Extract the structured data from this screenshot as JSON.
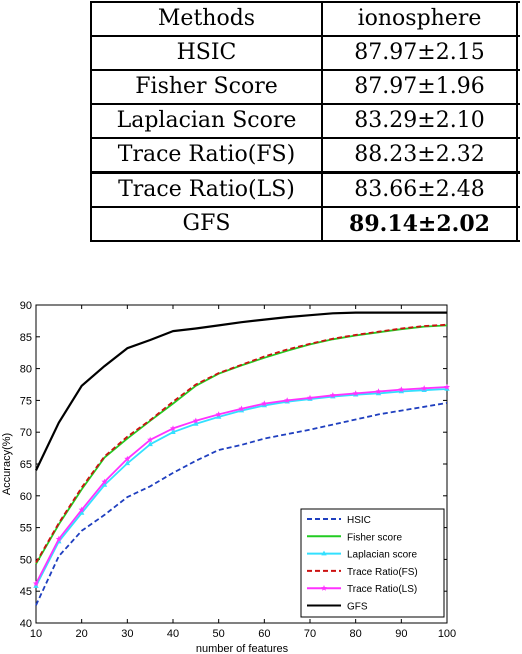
{
  "table": {
    "header": [
      "Methods",
      "ionosphere"
    ],
    "rows": [
      {
        "method": "HSIC",
        "value": "87.97±2.15",
        "best": false
      },
      {
        "method": "Fisher Score",
        "value": "87.97±1.96",
        "best": false
      },
      {
        "method": "Laplacian Score",
        "value": "83.29±2.10",
        "best": false
      },
      {
        "method": "Trace Ratio(FS)",
        "value": "88.23±2.32",
        "best": false
      },
      {
        "method": "Trace Ratio(LS)",
        "value": "83.66±2.48",
        "best": false
      },
      {
        "method": "GFS",
        "value": "89.14±2.02",
        "best": true
      }
    ]
  },
  "chart_data": {
    "type": "line",
    "title": "",
    "xlabel": "number of features",
    "ylabel": "Accuracy(%)",
    "xlim": [
      10,
      100
    ],
    "ylim": [
      40,
      90
    ],
    "xticks": [
      10,
      20,
      30,
      40,
      50,
      60,
      70,
      80,
      90,
      100
    ],
    "yticks": [
      40,
      45,
      50,
      55,
      60,
      65,
      70,
      75,
      80,
      85,
      90
    ],
    "grid": false,
    "legend_position": "bottom-right",
    "x": [
      10,
      15,
      20,
      25,
      30,
      35,
      40,
      45,
      50,
      55,
      60,
      65,
      70,
      75,
      80,
      85,
      90,
      95,
      100
    ],
    "series": [
      {
        "name": "HSIC",
        "color": "#1f3fbf",
        "dash": "dashed",
        "marker": "none",
        "values": [
          42.8,
          50.5,
          54.5,
          57.0,
          59.8,
          61.5,
          63.6,
          65.5,
          67.2,
          68.0,
          69.0,
          69.7,
          70.4,
          71.2,
          72.0,
          72.8,
          73.4,
          74.0,
          74.6
        ]
      },
      {
        "name": "Fisher score",
        "color": "#22cc22",
        "dash": "solid",
        "marker": "none",
        "values": [
          49.3,
          55.5,
          61.0,
          66.0,
          69.0,
          71.8,
          74.5,
          77.3,
          79.2,
          80.5,
          81.7,
          82.8,
          83.8,
          84.6,
          85.2,
          85.7,
          86.2,
          86.6,
          86.8
        ]
      },
      {
        "name": "Laplacian score",
        "color": "#33e0ff",
        "dash": "solid",
        "marker": "triangle",
        "values": [
          45.8,
          52.8,
          57.3,
          61.7,
          65.1,
          68.1,
          70.0,
          71.3,
          72.4,
          73.4,
          74.2,
          74.8,
          75.2,
          75.6,
          75.9,
          76.1,
          76.4,
          76.6,
          76.8
        ]
      },
      {
        "name": "Trace Ratio(FS)",
        "color": "#cc1111",
        "dash": "dashed",
        "marker": "none",
        "values": [
          49.5,
          55.7,
          61.3,
          66.2,
          69.3,
          71.9,
          74.8,
          77.5,
          79.3,
          80.6,
          81.9,
          83.0,
          83.9,
          84.7,
          85.3,
          85.8,
          86.3,
          86.7,
          86.9
        ]
      },
      {
        "name": "Trace Ratio(LS)",
        "color": "#ff33ff",
        "dash": "solid",
        "marker": "star",
        "values": [
          46.2,
          53.2,
          57.8,
          62.2,
          65.8,
          68.8,
          70.6,
          71.8,
          72.8,
          73.7,
          74.5,
          75.0,
          75.4,
          75.8,
          76.1,
          76.4,
          76.7,
          76.9,
          77.1
        ]
      },
      {
        "name": "GFS",
        "color": "#000000",
        "dash": "solid",
        "marker": "none",
        "values": [
          64.0,
          71.5,
          77.3,
          80.4,
          83.2,
          84.5,
          85.9,
          86.3,
          86.8,
          87.3,
          87.7,
          88.1,
          88.4,
          88.7,
          88.8,
          88.8,
          88.8,
          88.8,
          88.8
        ]
      }
    ]
  }
}
